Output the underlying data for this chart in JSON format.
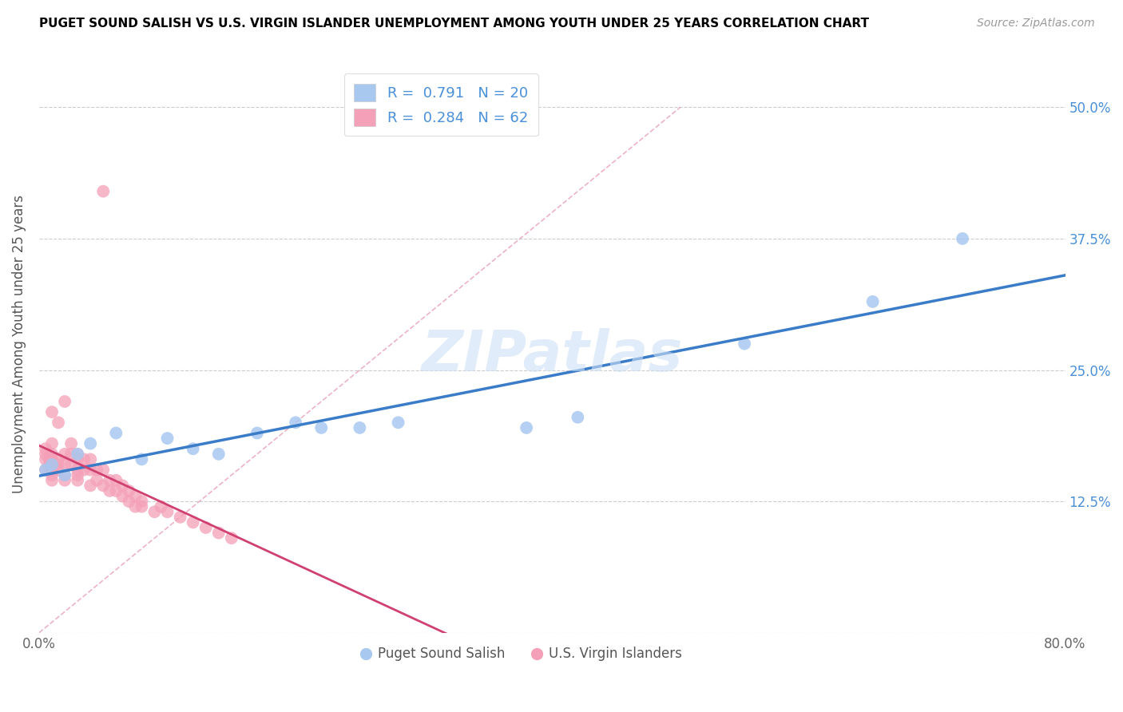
{
  "title": "PUGET SOUND SALISH VS U.S. VIRGIN ISLANDER UNEMPLOYMENT AMONG YOUTH UNDER 25 YEARS CORRELATION CHART",
  "source": "Source: ZipAtlas.com",
  "ylabel": "Unemployment Among Youth under 25 years",
  "xlim": [
    0.0,
    0.8
  ],
  "ylim": [
    0.0,
    0.55
  ],
  "xtick_positions": [
    0.0,
    0.1,
    0.2,
    0.3,
    0.4,
    0.5,
    0.6,
    0.7,
    0.8
  ],
  "xtick_labels": [
    "0.0%",
    "",
    "",
    "",
    "",
    "",
    "",
    "",
    "80.0%"
  ],
  "ytick_positions": [
    0.0,
    0.125,
    0.25,
    0.375,
    0.5
  ],
  "ytick_labels_right": [
    "",
    "12.5%",
    "25.0%",
    "37.5%",
    "50.0%"
  ],
  "blue_color": "#a8c8f0",
  "pink_color": "#f4a0b8",
  "blue_line_color": "#3a7cc8",
  "pink_line_color": "#d04070",
  "diag_color": "#e8a0b8",
  "R_blue": 0.791,
  "N_blue": 20,
  "R_pink": 0.284,
  "N_pink": 62,
  "watermark": "ZIPatlas",
  "legend_labels": [
    "Puget Sound Salish",
    "U.S. Virgin Islanders"
  ],
  "blue_scatter_x": [
    0.005,
    0.01,
    0.02,
    0.03,
    0.04,
    0.06,
    0.08,
    0.1,
    0.12,
    0.14,
    0.17,
    0.2,
    0.22,
    0.25,
    0.28,
    0.38,
    0.42,
    0.55,
    0.65,
    0.72
  ],
  "blue_scatter_y": [
    0.155,
    0.16,
    0.15,
    0.17,
    0.18,
    0.19,
    0.165,
    0.185,
    0.175,
    0.17,
    0.19,
    0.2,
    0.195,
    0.195,
    0.2,
    0.195,
    0.205,
    0.275,
    0.315,
    0.375
  ],
  "pink_scatter_x": [
    0.005,
    0.005,
    0.005,
    0.005,
    0.008,
    0.008,
    0.008,
    0.01,
    0.01,
    0.01,
    0.01,
    0.01,
    0.01,
    0.01,
    0.01,
    0.015,
    0.015,
    0.015,
    0.015,
    0.02,
    0.02,
    0.02,
    0.02,
    0.02,
    0.025,
    0.025,
    0.025,
    0.03,
    0.03,
    0.03,
    0.03,
    0.03,
    0.035,
    0.035,
    0.04,
    0.04,
    0.04,
    0.045,
    0.045,
    0.05,
    0.05,
    0.055,
    0.055,
    0.06,
    0.06,
    0.065,
    0.065,
    0.07,
    0.07,
    0.075,
    0.075,
    0.08,
    0.08,
    0.09,
    0.095,
    0.1,
    0.11,
    0.12,
    0.13,
    0.14,
    0.15,
    0.05
  ],
  "pink_scatter_y": [
    0.155,
    0.165,
    0.17,
    0.175,
    0.155,
    0.16,
    0.165,
    0.145,
    0.15,
    0.155,
    0.16,
    0.165,
    0.17,
    0.18,
    0.21,
    0.155,
    0.16,
    0.165,
    0.2,
    0.145,
    0.15,
    0.16,
    0.17,
    0.22,
    0.16,
    0.17,
    0.18,
    0.145,
    0.15,
    0.155,
    0.165,
    0.17,
    0.155,
    0.165,
    0.14,
    0.155,
    0.165,
    0.145,
    0.155,
    0.14,
    0.155,
    0.135,
    0.145,
    0.135,
    0.145,
    0.13,
    0.14,
    0.125,
    0.135,
    0.12,
    0.13,
    0.12,
    0.125,
    0.115,
    0.12,
    0.115,
    0.11,
    0.105,
    0.1,
    0.095,
    0.09,
    0.42
  ]
}
